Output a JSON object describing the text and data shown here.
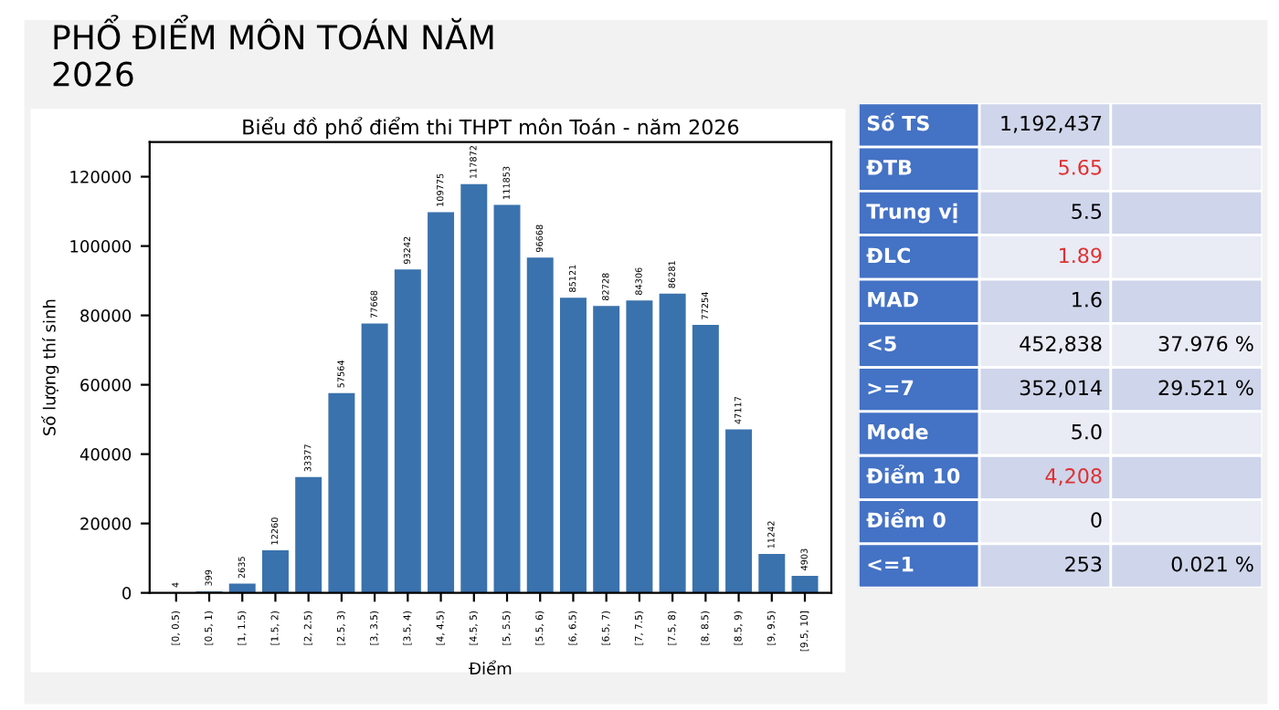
{
  "chart_data": [
    {
      "type": "bar",
      "title": "PHỔ ĐIỂM MÔN TOÁN NĂM\n2026",
      "subtitle": "Biểu đồ phổ điểm thi THPT môn Toán - năm 2026",
      "xlabel": "Điểm",
      "ylabel": "Số lượng thí sinh",
      "categories": [
        "[0, 0.5)",
        "[0.5, 1)",
        "[1, 1.5)",
        "[1.5, 2)",
        "[2, 2.5)",
        "[2.5, 3)",
        "[3, 3.5)",
        "[3.5, 4)",
        "[4, 4.5)",
        "[4.5, 5)",
        "[5, 5.5)",
        "[5.5, 6)",
        "[6, 6.5)",
        "[6.5, 7)",
        "[7, 7.5)",
        "[7.5, 8)",
        "[8, 8.5)",
        "[8.5, 9)",
        "[9, 9.5)",
        "[9.5, 10]"
      ],
      "values": [
        4,
        399,
        2635,
        12260,
        33377,
        57564,
        77668,
        93242,
        109775,
        117872,
        111853,
        96668,
        85121,
        82728,
        84306,
        86281,
        77254,
        47117,
        11242,
        4903
      ],
      "color": "#3a72ad",
      "ylim": [
        0,
        130000
      ],
      "yticks": [
        0,
        20000,
        40000,
        60000,
        80000,
        100000,
        120000
      ],
      "grid": false,
      "data_labels": true
    },
    {
      "type": "other",
      "y_categories": [
        "Số TS",
        "ĐTB",
        "Trung vị",
        "ĐLC",
        "MAD",
        "<5",
        ">=7",
        "Mode",
        "Điểm 10",
        "Điểm 0",
        "<=1"
      ],
      "cell_labels": [
        [
          "1,192,437",
          null
        ],
        [
          "5.65",
          null
        ],
        [
          "5.5",
          null
        ],
        [
          "1.89",
          null
        ],
        [
          "1.6",
          null
        ],
        [
          "452,838",
          "37.976 %"
        ],
        [
          "352,014",
          "29.521 %"
        ],
        [
          "5.0",
          null
        ],
        [
          "4,208",
          null
        ],
        [
          "0",
          null
        ],
        [
          "253",
          "0.021 %"
        ]
      ],
      "colors": [
        "#000000",
        "#e03030",
        "#000000",
        "#e03030",
        "#000000",
        "#000000",
        "#000000",
        "#000000",
        "#e03030",
        "#000000",
        "#000000"
      ]
    }
  ]
}
